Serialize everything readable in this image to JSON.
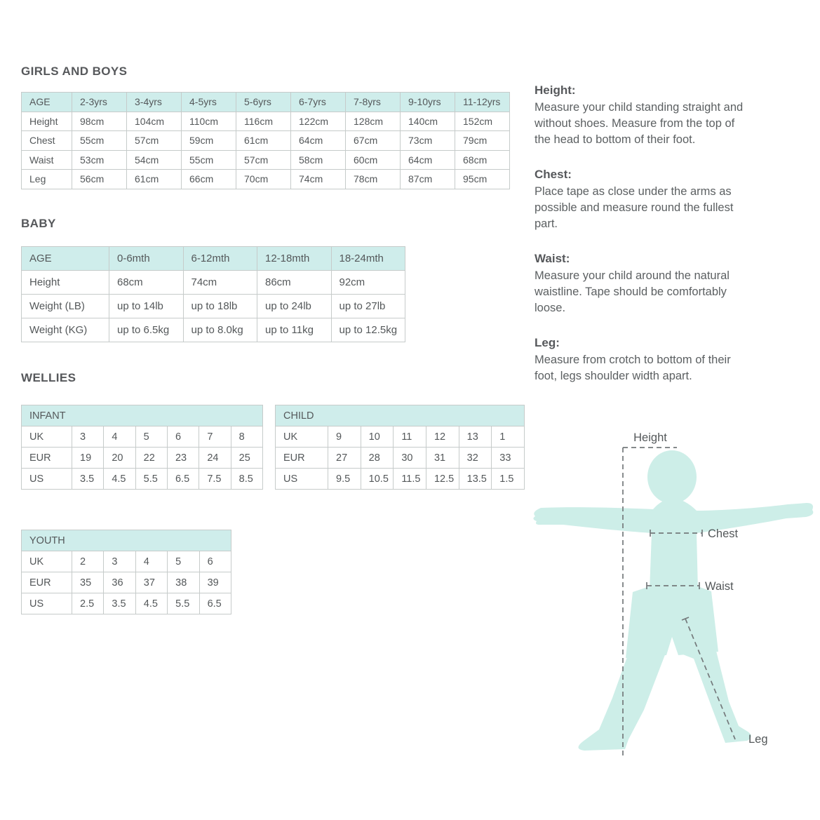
{
  "colors": {
    "table_header_bg": "#cfedeb",
    "table_border": "#c6cbca",
    "silhouette": "#cdeee8",
    "dashed_line": "#74797b",
    "text": "#54585a"
  },
  "girls_boys": {
    "heading": "GIRLS AND BOYS",
    "header": [
      "AGE",
      "2-3yrs",
      "3-4yrs",
      "4-5yrs",
      "5-6yrs",
      "6-7yrs",
      "7-8yrs",
      "9-10yrs",
      "11-12yrs"
    ],
    "rows": [
      [
        "Height",
        "98cm",
        "104cm",
        "110cm",
        "116cm",
        "122cm",
        "128cm",
        "140cm",
        "152cm"
      ],
      [
        "Chest",
        "55cm",
        "57cm",
        "59cm",
        "61cm",
        "64cm",
        "67cm",
        "73cm",
        "79cm"
      ],
      [
        "Waist",
        "53cm",
        "54cm",
        "55cm",
        "57cm",
        "58cm",
        "60cm",
        "64cm",
        "68cm"
      ],
      [
        "Leg",
        "56cm",
        "61cm",
        "66cm",
        "70cm",
        "74cm",
        "78cm",
        "87cm",
        "95cm"
      ]
    ]
  },
  "baby": {
    "heading": "BABY",
    "header": [
      "AGE",
      "0-6mth",
      "6-12mth",
      "12-18mth",
      "18-24mth"
    ],
    "rows": [
      [
        "Height",
        "68cm",
        "74cm",
        "86cm",
        "92cm"
      ],
      [
        "Weight (LB)",
        "up to 14lb",
        "up to 18lb",
        "up to 24lb",
        "up to 27lb"
      ],
      [
        "Weight (KG)",
        "up to 6.5kg",
        "up to 8.0kg",
        "up to 11kg",
        "up to 12.5kg"
      ]
    ]
  },
  "wellies": {
    "heading": "WELLIES",
    "infant": {
      "title": "INFANT",
      "rows": [
        [
          "UK",
          "3",
          "4",
          "5",
          "6",
          "7",
          "8"
        ],
        [
          "EUR",
          "19",
          "20",
          "22",
          "23",
          "24",
          "25"
        ],
        [
          "US",
          "3.5",
          "4.5",
          "5.5",
          "6.5",
          "7.5",
          "8.5"
        ]
      ]
    },
    "child": {
      "title": "CHILD",
      "rows": [
        [
          "UK",
          "9",
          "10",
          "11",
          "12",
          "13",
          "1"
        ],
        [
          "EUR",
          "27",
          "28",
          "30",
          "31",
          "32",
          "33"
        ],
        [
          "US",
          "9.5",
          "10.5",
          "11.5",
          "12.5",
          "13.5",
          "1.5"
        ]
      ]
    },
    "youth": {
      "title": "YOUTH",
      "rows": [
        [
          "UK",
          "2",
          "3",
          "4",
          "5",
          "6"
        ],
        [
          "EUR",
          "35",
          "36",
          "37",
          "38",
          "39"
        ],
        [
          "US",
          "2.5",
          "3.5",
          "4.5",
          "5.5",
          "6.5"
        ]
      ]
    }
  },
  "guide": {
    "sections": [
      {
        "label": "Height:",
        "text": "Measure your child standing straight and without shoes. Measure from the top of the head to bottom of their foot."
      },
      {
        "label": "Chest:",
        "text": "Place tape as close under the arms as possible and measure round the fullest part."
      },
      {
        "label": "Waist:",
        "text": "Measure your child around the natural waistline. Tape should be comfortably loose."
      },
      {
        "label": "Leg:",
        "text": "Measure from crotch to bottom of their foot, legs shoulder width apart."
      }
    ]
  },
  "figure": {
    "height_label": "Height",
    "chest_label": "Chest",
    "waist_label": "Waist",
    "leg_label": "Leg"
  }
}
